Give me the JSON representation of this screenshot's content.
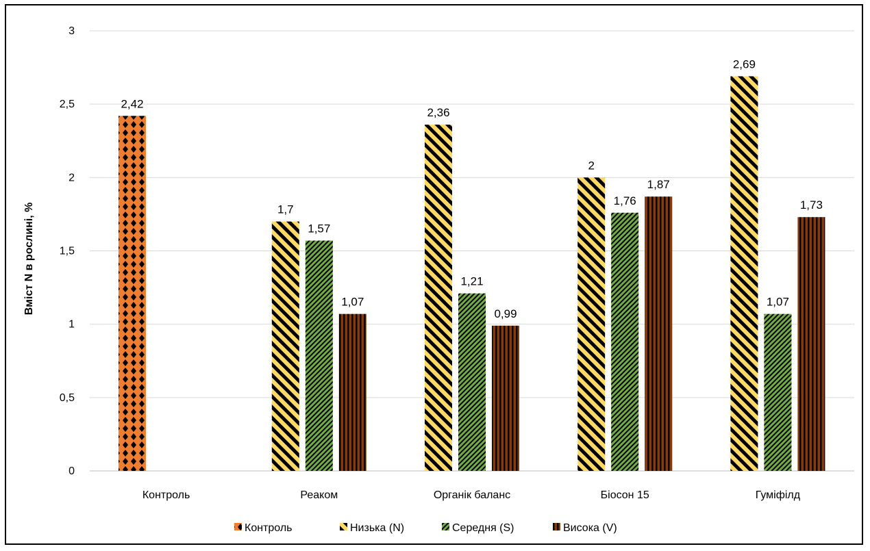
{
  "chart_data": {
    "type": "bar",
    "title": "",
    "xlabel": "",
    "ylabel": "Вміст N в рослині, %",
    "ylim": [
      0,
      3
    ],
    "yticks": [
      "0",
      "0,5",
      "1",
      "1,5",
      "2",
      "2,5",
      "3"
    ],
    "categories": [
      "Контроль",
      "Реаком",
      "Органік баланс",
      "Біосон 15",
      "Гуміфілд"
    ],
    "series": [
      {
        "name": "Контроль",
        "color": "#ED7D31",
        "pattern": "diamond-dots",
        "values": [
          2.42,
          null,
          null,
          null,
          null
        ],
        "labels": [
          "2,42",
          "",
          "",
          "",
          ""
        ]
      },
      {
        "name": "Низька (N)",
        "color": "#FFD966",
        "pattern": "diagonal-stripes",
        "values": [
          null,
          1.7,
          2.36,
          2.0,
          2.69
        ],
        "labels": [
          "",
          "1,7",
          "2,36",
          "2",
          "2,69"
        ]
      },
      {
        "name": "Середня (S)",
        "color": "#70AD47",
        "pattern": "fine-diagonal",
        "values": [
          null,
          1.57,
          1.21,
          1.76,
          1.07
        ],
        "labels": [
          "",
          "1,57",
          "1,21",
          "1,76",
          "1,07"
        ]
      },
      {
        "name": "Висока (V)",
        "color": "#843C0C",
        "pattern": "vertical-stripes",
        "values": [
          null,
          1.07,
          0.99,
          1.87,
          1.73
        ],
        "labels": [
          "",
          "1,07",
          "0,99",
          "1,87",
          "1,73"
        ]
      }
    ],
    "grid": true,
    "legend_position": "bottom"
  }
}
